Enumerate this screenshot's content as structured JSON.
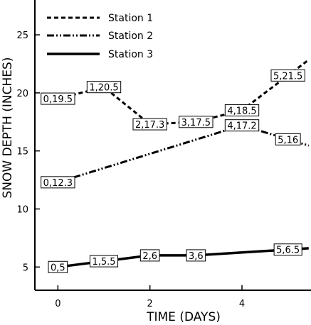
{
  "chart_data": {
    "type": "line",
    "title": "",
    "xlabel": "TIME (DAYS)",
    "ylabel": "SNOW DEPTH (INCHES)",
    "xlim": [
      -0.5,
      5.5
    ],
    "ylim": [
      3,
      28
    ],
    "xticks": [
      0,
      2,
      4
    ],
    "yticks": [
      5,
      10,
      15,
      20,
      25
    ],
    "grid": false,
    "legend_position": "top-left",
    "series": [
      {
        "name": "Station 1",
        "style": "dashed",
        "x": [
          0,
          1,
          2,
          3,
          4,
          5
        ],
        "y": [
          19.5,
          20.5,
          17.3,
          17.5,
          18.5,
          21.5
        ],
        "labels": [
          "0,19.5",
          "1,20.5",
          "2,17.3",
          "3,17.5",
          "4,18.5",
          "5,21.5"
        ]
      },
      {
        "name": "Station 2",
        "style": "dash-dot-dot",
        "x": [
          0,
          4,
          5
        ],
        "y": [
          12.3,
          17.2,
          16
        ],
        "labels": [
          "0,12.3",
          "4,17.2",
          "5,16"
        ]
      },
      {
        "name": "Station 3",
        "style": "solid",
        "x": [
          0,
          1,
          2,
          3,
          5
        ],
        "y": [
          5,
          5.5,
          6,
          6,
          6.5
        ],
        "labels": [
          "0,5",
          "1,5.5",
          "2,6",
          "3,6",
          "5,6.5"
        ]
      }
    ]
  }
}
